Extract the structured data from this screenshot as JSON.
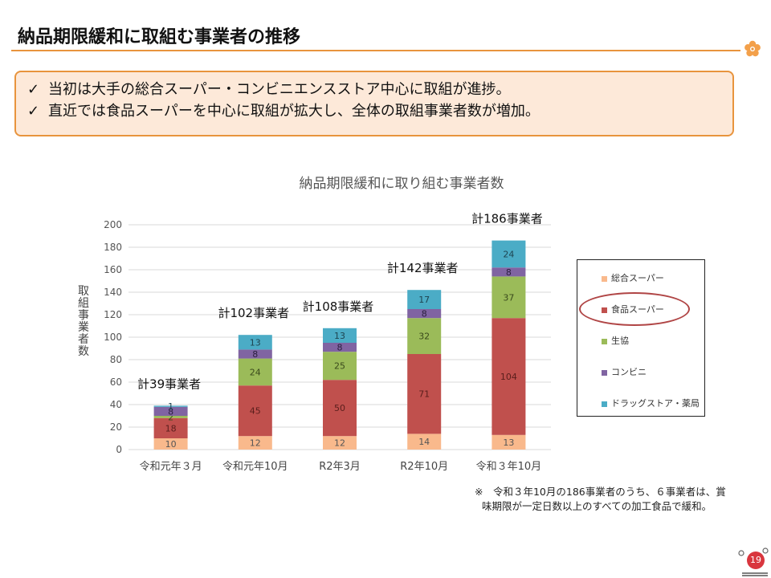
{
  "page": {
    "title": "納品期限緩和に取組む事業者の推移",
    "page_number": "19"
  },
  "callout": {
    "check_glyph": "✓",
    "lines": [
      "当初は大手の総合スーパー・コンビニエンスストア中心に取組が進捗。",
      "直近では食品スーパーを中心に取組が拡大し、全体の取組事業者数が増加。"
    ]
  },
  "note": {
    "line1": "※　令和３年10月の186事業者のうち、６事業者は、賞",
    "line2": "味期限が一定日数以上のすべての加工食品で緩和。"
  },
  "chart_data": {
    "type": "bar",
    "stacked": true,
    "title": "納品期限緩和に取り組む事業者数",
    "ylabel": "取組事業者数",
    "ylim": [
      0,
      200
    ],
    "yticks": [
      0,
      20,
      40,
      60,
      80,
      100,
      120,
      140,
      160,
      180,
      200
    ],
    "grid": true,
    "legend_position": "right",
    "categories": [
      "令和元年３月",
      "令和元年10月",
      "R2年3月",
      "R2年10月",
      "令和３年10月"
    ],
    "totals_labels": [
      "計39事業者",
      "計102事業者",
      "計108事業者",
      "計142事業者",
      "計186事業者"
    ],
    "totals": [
      39,
      102,
      108,
      142,
      186
    ],
    "series": [
      {
        "name": "総合スーパー",
        "color": "#f9b98c",
        "values": [
          10,
          12,
          12,
          14,
          13
        ]
      },
      {
        "name": "食品スーパー",
        "color": "#c0504d",
        "values": [
          18,
          45,
          50,
          71,
          104
        ]
      },
      {
        "name": "生協",
        "color": "#9bbb59",
        "values": [
          2,
          24,
          25,
          32,
          37
        ]
      },
      {
        "name": "コンビニ",
        "color": "#8064a2",
        "values": [
          8,
          8,
          8,
          8,
          8
        ]
      },
      {
        "name": "ドラッグストア・薬局",
        "color": "#4bacc6",
        "values": [
          1,
          13,
          13,
          17,
          24
        ]
      }
    ],
    "highlighted_legend_entry": "食品スーパー"
  },
  "colors": {
    "accent": "#e8943d",
    "callout_bg": "#fde9d9",
    "highlight_ring": "#b04545",
    "page_badge": "#d9363e"
  },
  "icons": {
    "corner": "plum-flower-icon",
    "footer": "ministry-logo-icon"
  }
}
